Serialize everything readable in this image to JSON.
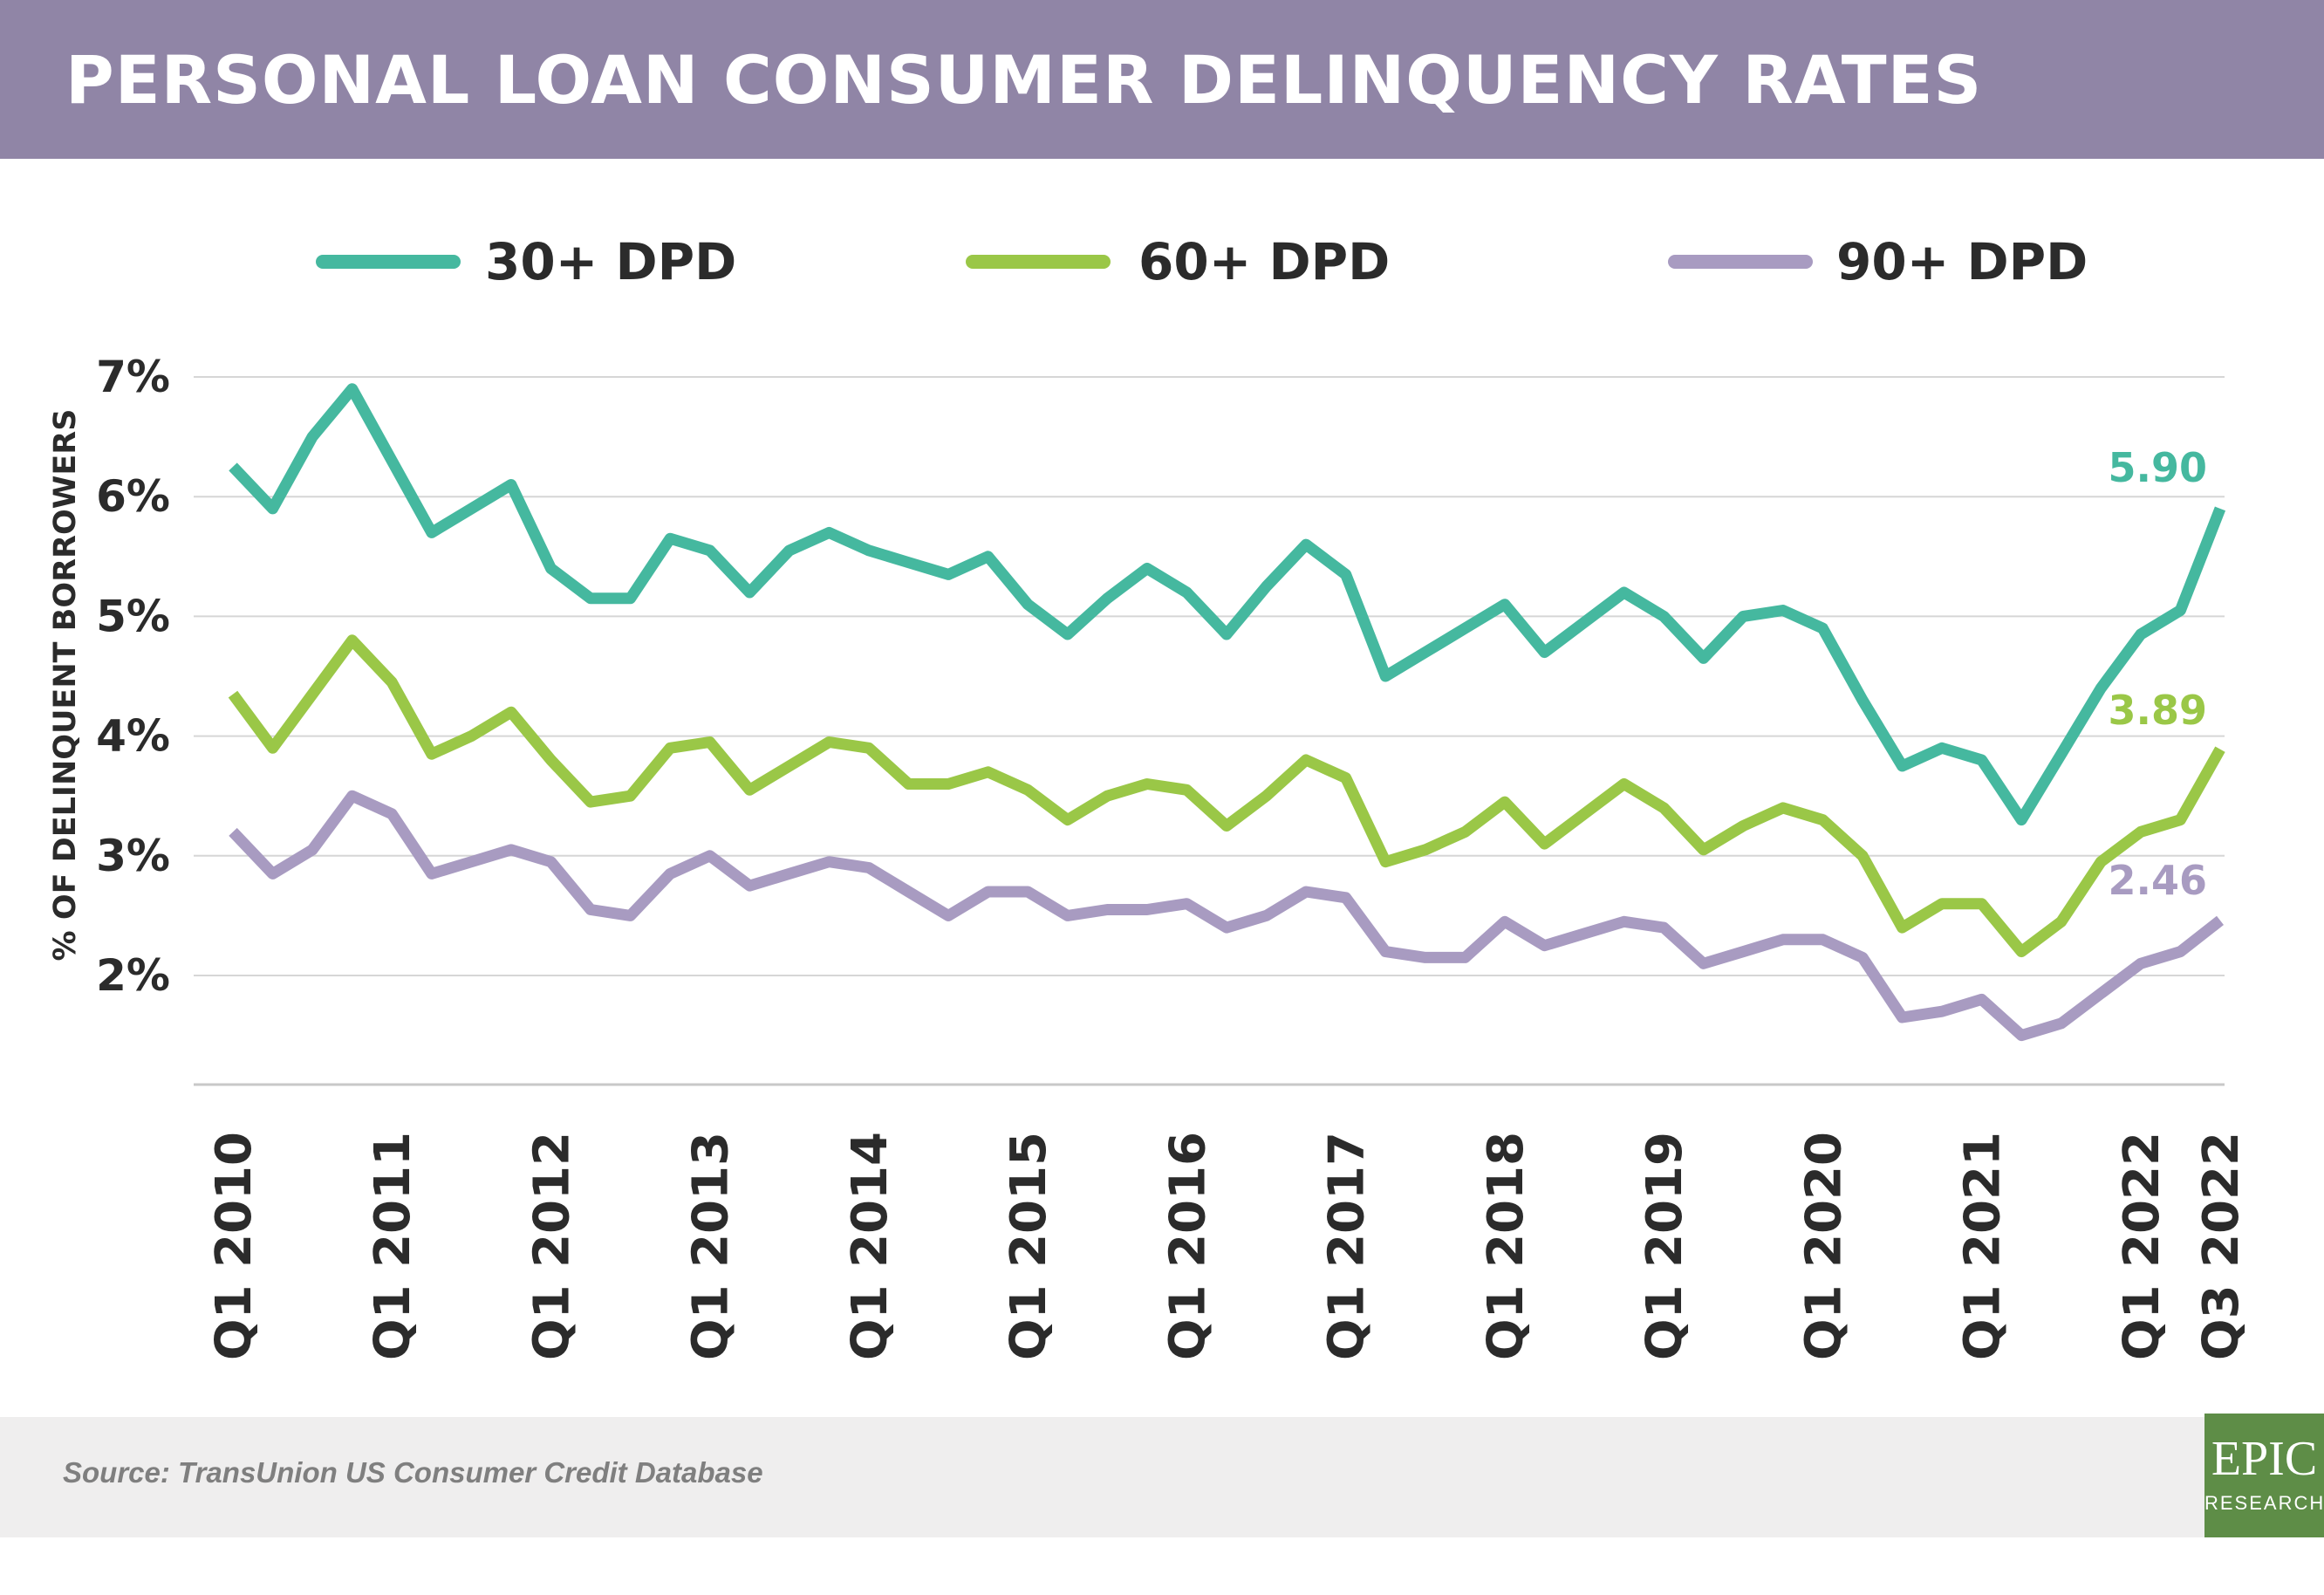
{
  "header": {
    "title": "PERSONAL LOAN CONSUMER DELINQUENCY RATES"
  },
  "footer": {
    "source": "Source: TransUnion US Consumer Credit Database"
  },
  "logo": {
    "line1": "EPIC",
    "line2": "RESEARCH"
  },
  "colors": {
    "header_bg": "#9085a6",
    "footer_bg": "#efeeee",
    "logo_bg": "#5e8d47",
    "dpd30": "#45b89f",
    "dpd60": "#9ac747",
    "dpd90": "#a89bc1"
  },
  "chart_data": {
    "type": "line",
    "title": "PERSONAL LOAN CONSUMER DELINQUENCY RATES",
    "ylabel": "% OF DELINQUENT BORROWERS",
    "xlabel": "",
    "ylim": [
      1,
      7
    ],
    "yticks": [
      2,
      3,
      4,
      5,
      6,
      7
    ],
    "ytick_labels": [
      "2%",
      "3%",
      "4%",
      "5%",
      "6%",
      "7%"
    ],
    "grid": true,
    "legend_position": "top",
    "xtick_labels": [
      {
        "index": 0,
        "label": "Q1 2010"
      },
      {
        "index": 4,
        "label": "Q1 2011"
      },
      {
        "index": 8,
        "label": "Q1 2012"
      },
      {
        "index": 12,
        "label": "Q1 2013"
      },
      {
        "index": 16,
        "label": "Q1 2014"
      },
      {
        "index": 20,
        "label": "Q1 2015"
      },
      {
        "index": 24,
        "label": "Q1 2016"
      },
      {
        "index": 28,
        "label": "Q1 2017"
      },
      {
        "index": 32,
        "label": "Q1 2018"
      },
      {
        "index": 36,
        "label": "Q1 2019"
      },
      {
        "index": 40,
        "label": "Q1 2020"
      },
      {
        "index": 44,
        "label": "Q1 2021"
      },
      {
        "index": 48,
        "label": "Q1 2022"
      },
      {
        "index": 50,
        "label": "Q3 2022"
      }
    ],
    "series": [
      {
        "name": "30+ DPD",
        "color": "#45b89f",
        "end_label": "5.90",
        "values": [
          6.25,
          5.9,
          6.5,
          6.9,
          6.3,
          5.7,
          5.9,
          6.1,
          5.4,
          5.15,
          5.15,
          5.65,
          5.55,
          5.2,
          5.55,
          5.7,
          5.55,
          5.45,
          5.35,
          5.5,
          5.1,
          4.85,
          5.15,
          5.4,
          5.2,
          4.85,
          5.25,
          5.6,
          5.35,
          4.5,
          4.7,
          4.9,
          5.1,
          4.7,
          4.95,
          5.2,
          5.0,
          4.65,
          5.0,
          5.05,
          4.9,
          4.3,
          3.75,
          3.9,
          3.8,
          3.3,
          3.85,
          4.4,
          4.85,
          5.05,
          5.9
        ]
      },
      {
        "name": "60+ DPD",
        "color": "#9ac747",
        "end_label": "3.89",
        "values": [
          4.35,
          3.9,
          4.35,
          4.8,
          4.45,
          3.85,
          4.0,
          4.2,
          3.8,
          3.45,
          3.5,
          3.9,
          3.95,
          3.55,
          3.75,
          3.95,
          3.9,
          3.6,
          3.6,
          3.7,
          3.55,
          3.3,
          3.5,
          3.6,
          3.55,
          3.25,
          3.5,
          3.8,
          3.65,
          2.95,
          3.05,
          3.2,
          3.45,
          3.1,
          3.35,
          3.6,
          3.4,
          3.05,
          3.25,
          3.4,
          3.3,
          3.0,
          2.4,
          2.6,
          2.6,
          2.2,
          2.45,
          2.95,
          3.2,
          3.3,
          3.89
        ]
      },
      {
        "name": "90+ DPD",
        "color": "#a89bc1",
        "end_label": "2.46",
        "values": [
          3.2,
          2.85,
          3.05,
          3.5,
          3.35,
          2.85,
          2.95,
          3.05,
          2.95,
          2.55,
          2.5,
          2.85,
          3.0,
          2.75,
          2.85,
          2.95,
          2.9,
          2.7,
          2.5,
          2.7,
          2.7,
          2.5,
          2.55,
          2.55,
          2.6,
          2.4,
          2.5,
          2.7,
          2.65,
          2.2,
          2.15,
          2.15,
          2.45,
          2.25,
          2.35,
          2.45,
          2.4,
          2.1,
          2.2,
          2.3,
          2.3,
          2.15,
          1.65,
          1.7,
          1.8,
          1.5,
          1.6,
          1.85,
          2.1,
          2.2,
          2.46
        ]
      }
    ]
  }
}
